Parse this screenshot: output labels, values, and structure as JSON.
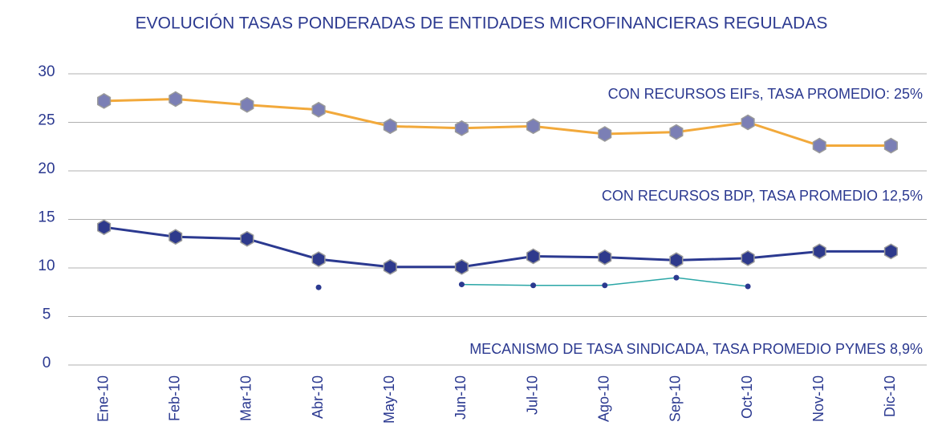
{
  "chart_data": {
    "type": "line",
    "title": "EVOLUCIÓN TASAS PONDERADAS DE ENTIDADES MICROFINANCIERAS REGULADAS",
    "categories": [
      "Ene-10",
      "Feb-10",
      "Mar-10",
      "Abr-10",
      "May-10",
      "Jun-10",
      "Jul-10",
      "Ago-10",
      "Sep-10",
      "Oct-10",
      "Nov-10",
      "Dic-10"
    ],
    "series": [
      {
        "name": "CON RECURSOS EIFs, TASA PROMEDIO: 25%",
        "color": "#f2a93b",
        "marker_color": "#7b7fb5",
        "values": [
          27.2,
          27.4,
          26.8,
          26.3,
          24.6,
          24.4,
          24.6,
          23.8,
          24.0,
          25.0,
          22.6,
          22.6
        ]
      },
      {
        "name": "CON RECURSOS BDP, TASA PROMEDIO 12,5%",
        "color": "#2b3990",
        "marker_color": "#2e3a8c",
        "values": [
          14.2,
          13.2,
          13.0,
          10.9,
          10.1,
          10.1,
          11.2,
          11.1,
          10.8,
          11.0,
          11.7,
          11.7
        ]
      },
      {
        "name": "MECANISMO DE TASA SINDICADA, TASA PROMEDIO PYMES 8,9%",
        "color": "#2aa6a6",
        "marker_color": "#2b3990",
        "values": [
          null,
          null,
          null,
          8.0,
          null,
          8.3,
          8.2,
          8.2,
          9.0,
          8.1,
          null,
          null
        ]
      }
    ],
    "ylim": [
      0,
      30
    ],
    "yticks": [
      0,
      5,
      10,
      15,
      20,
      25,
      30
    ],
    "grid": true
  }
}
